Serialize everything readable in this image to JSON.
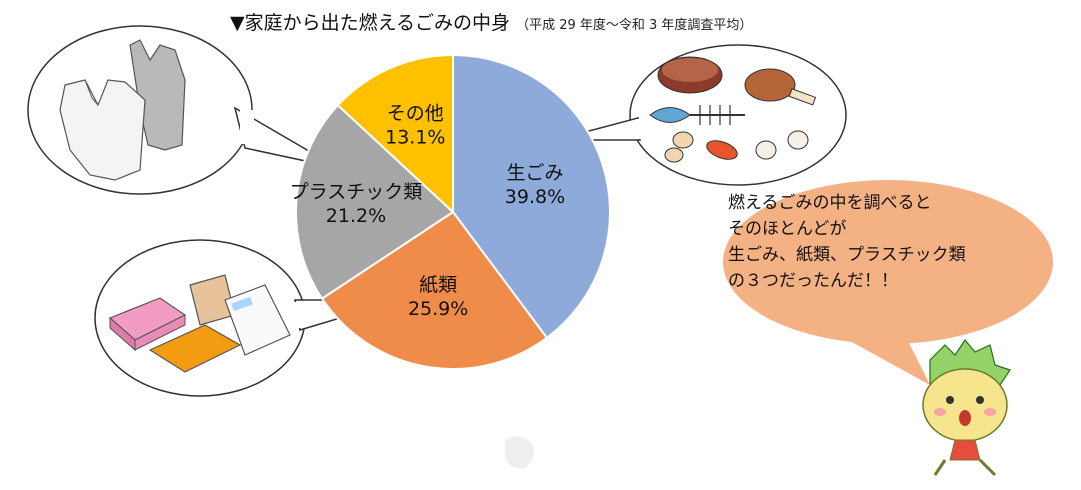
{
  "title": {
    "main": "▼家庭から出た燃えるごみの中身",
    "sub": "（平成 29 年度～令和 3 年度調査平均）"
  },
  "chart_data": {
    "type": "pie",
    "title": "▼家庭から出た燃えるごみの中身",
    "subtitle": "（平成 29 年度～令和 3 年度調査平均）",
    "slices": [
      {
        "label": "生ごみ",
        "value": 39.8,
        "value_label": "39.8%",
        "color": "#8eaadb"
      },
      {
        "label": "紙類",
        "value": 25.9,
        "value_label": "25.9%",
        "color": "#f08c4a"
      },
      {
        "label": "プラスチック類",
        "value": 21.2,
        "value_label": "21.2%",
        "color": "#a6a6a6"
      },
      {
        "label": "その他",
        "value": 13.1,
        "value_label": "13.1%",
        "color": "#ffc000"
      }
    ]
  },
  "speech": {
    "lines": [
      "燃えるごみの中を調べると",
      "そのほとんどが",
      "生ごみ、紙類、プラスチック類",
      "の３つだったんだ！！"
    ],
    "color": "#f4b183"
  },
  "icons": {
    "food": "food-waste-icon",
    "paper": "paper-items-icon",
    "plastic": "plastic-bags-icon",
    "mascot": "mascot-character-icon"
  }
}
